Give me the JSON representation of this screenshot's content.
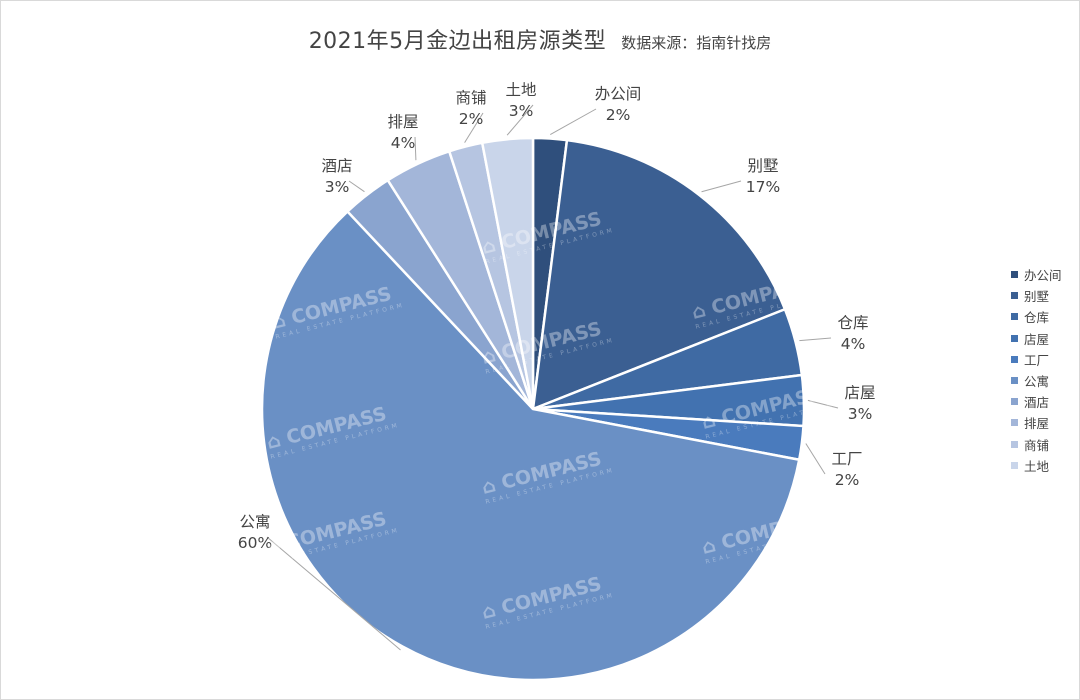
{
  "title": "2021年5月金边出租房源类型",
  "subtitle": "数据来源：指南针找房",
  "watermark_text": "COMPASS",
  "watermark_sub": "REAL ESTATE PLATFORM",
  "chart_data": {
    "type": "pie",
    "categories": [
      "办公间",
      "别墅",
      "仓库",
      "店屋",
      "工厂",
      "公寓",
      "酒店",
      "排屋",
      "商铺",
      "土地"
    ],
    "values": [
      2,
      17,
      4,
      3,
      2,
      60,
      3,
      4,
      2,
      3
    ],
    "value_labels": [
      "2%",
      "17%",
      "4%",
      "3%",
      "2%",
      "60%",
      "3%",
      "4%",
      "2%",
      "3%"
    ],
    "colors": [
      "#2f4f7c",
      "#3b5f92",
      "#3f6aa3",
      "#4272b0",
      "#4a7bbd",
      "#6a90c5",
      "#8aa4cf",
      "#a3b6d9",
      "#b6c5e1",
      "#c9d5ea"
    ],
    "legend_position": "right"
  }
}
